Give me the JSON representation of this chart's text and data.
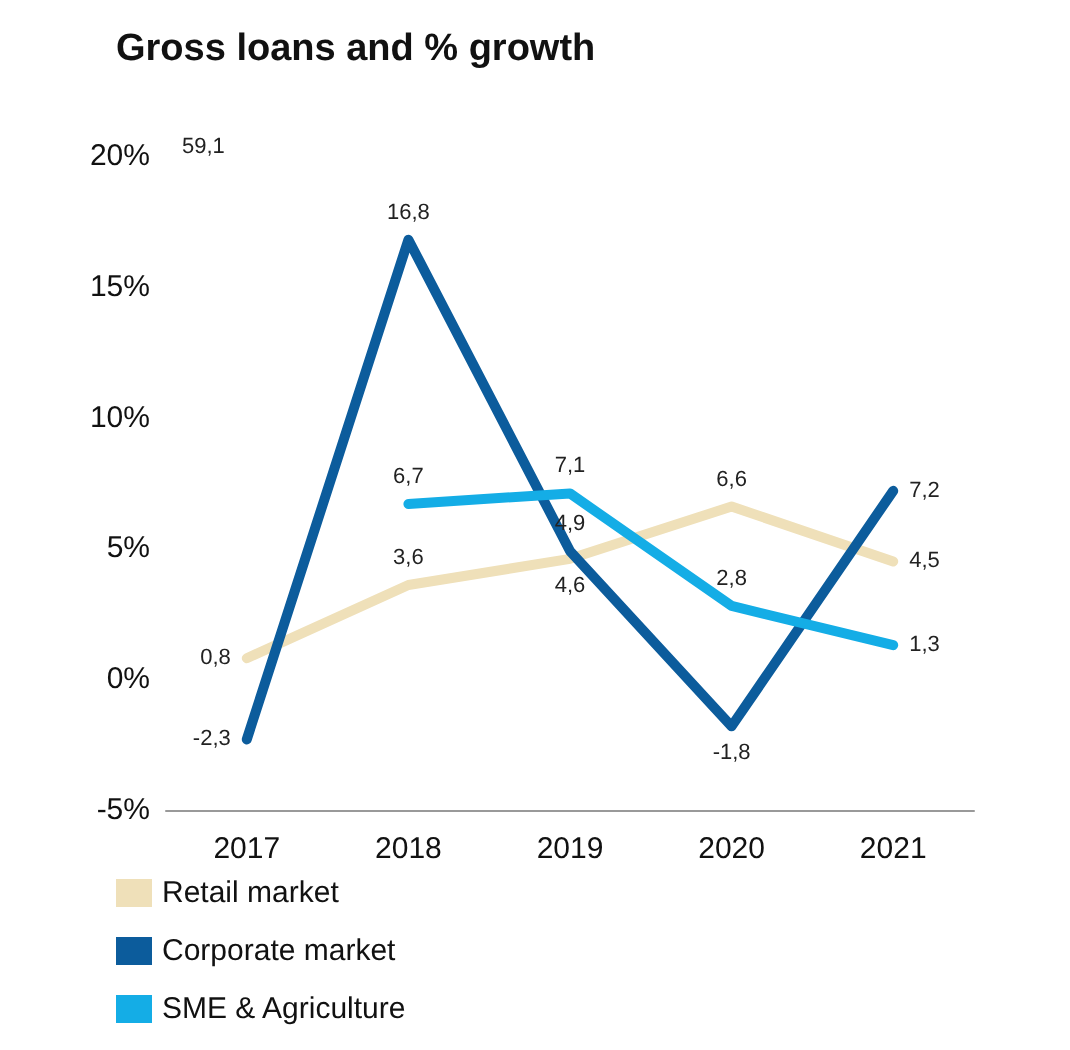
{
  "chart_data": {
    "type": "line",
    "title": "Gross loans and % growth",
    "categories": [
      "2017",
      "2018",
      "2019",
      "2020",
      "2021"
    ],
    "series": [
      {
        "name": "Retail market",
        "color": "#efe0b9",
        "values": [
          0.8,
          3.6,
          4.6,
          6.6,
          4.5
        ],
        "value_labels": [
          "0,8",
          "3,6",
          "4,6",
          "6,6",
          "4,5"
        ]
      },
      {
        "name": "Corporate market",
        "color": "#0c5c9c",
        "values": [
          -2.3,
          16.8,
          4.9,
          -1.8,
          7.2
        ],
        "value_labels": [
          "-2,3",
          "16,8",
          "4,9",
          "-1,8",
          "7,2"
        ]
      },
      {
        "name": "SME & Agriculture",
        "color": "#14ade6",
        "values": [
          null,
          6.7,
          7.1,
          2.8,
          1.3
        ],
        "value_labels": [
          null,
          "6,7",
          "7,1",
          "2,8",
          "1,3"
        ]
      }
    ],
    "annotations": [
      "59,1"
    ],
    "ylim": [
      -5,
      20
    ],
    "yticks": [
      {
        "value": -5,
        "label": "-5%"
      },
      {
        "value": 0,
        "label": "0%"
      },
      {
        "value": 5,
        "label": "5%"
      },
      {
        "value": 10,
        "label": "10%"
      },
      {
        "value": 15,
        "label": "15%"
      },
      {
        "value": 20,
        "label": "20%"
      }
    ],
    "grid": false,
    "legend": "bottom",
    "marker": "none",
    "line_style": "solid"
  }
}
